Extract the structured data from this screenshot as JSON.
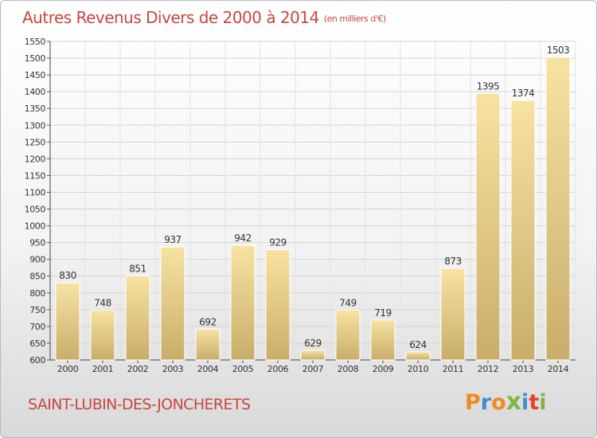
{
  "header": {
    "title": "Autres Revenus Divers de 2000 à 2014",
    "unit": "(en milliers d'€)"
  },
  "footer": {
    "town": "SAINT-LUBIN-DES-JONCHERETS",
    "logo_text": "Proxiti"
  },
  "colors": {
    "title": "#c8473e",
    "bar_light": "#f7e3a2",
    "bar_dark": "#c9ad6a",
    "logo": [
      "#f08a1e",
      "#3e8ed0",
      "#f08a1e",
      "#7cb73f",
      "#3e8ed0",
      "#e8402d",
      "#7cb73f"
    ]
  },
  "chart_data": {
    "type": "bar",
    "title": "Autres Revenus Divers de 2000 à 2014",
    "categories": [
      "2000",
      "2001",
      "2002",
      "2003",
      "2004",
      "2005",
      "2006",
      "2007",
      "2008",
      "2009",
      "2010",
      "2011",
      "2012",
      "2013",
      "2014"
    ],
    "values": [
      830,
      748,
      851,
      937,
      692,
      942,
      929,
      629,
      749,
      719,
      624,
      873,
      1395,
      1374,
      1503
    ],
    "ylim": [
      600,
      1550
    ],
    "yticks": [
      600,
      650,
      700,
      750,
      800,
      850,
      900,
      950,
      1000,
      1050,
      1100,
      1150,
      1200,
      1250,
      1300,
      1350,
      1400,
      1450,
      1500,
      1550
    ],
    "grid": true,
    "legend": "none"
  }
}
